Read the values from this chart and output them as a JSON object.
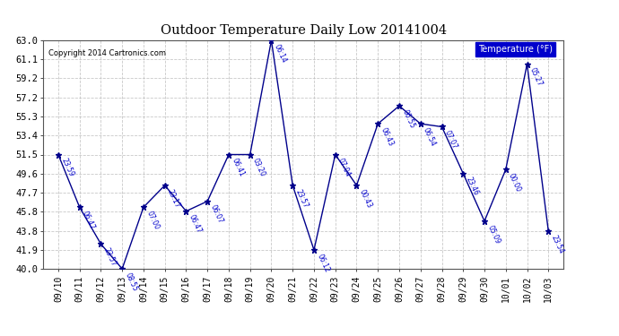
{
  "title": "Outdoor Temperature Daily Low 20141004",
  "copyright_text": "Copyright 2014 Cartronics.com",
  "legend_label": "Temperature (°F)",
  "x_labels": [
    "09/10",
    "09/11",
    "09/12",
    "09/13",
    "09/14",
    "09/15",
    "09/16",
    "09/17",
    "09/18",
    "09/19",
    "09/20",
    "09/21",
    "09/22",
    "09/23",
    "09/24",
    "09/25",
    "09/26",
    "09/27",
    "09/28",
    "09/29",
    "09/30",
    "10/01",
    "10/02",
    "10/03"
  ],
  "y_values": [
    51.5,
    46.2,
    42.5,
    40.0,
    46.2,
    48.4,
    45.8,
    46.8,
    51.5,
    51.5,
    63.0,
    48.4,
    41.9,
    51.5,
    48.4,
    54.6,
    56.4,
    54.6,
    54.3,
    49.6,
    44.8,
    50.0,
    60.6,
    43.8
  ],
  "time_labels": [
    "23:59",
    "06:47",
    "23:57",
    "08:55",
    "07:00",
    "23:17",
    "06:47",
    "06:07",
    "06:41",
    "03:20",
    "06:14",
    "23:57",
    "06:12",
    "07:04",
    "00:43",
    "06:43",
    "06:55",
    "06:54",
    "07:07",
    "23:46",
    "05:09",
    "00:00",
    "05:27",
    "23:54"
  ],
  "ylim": [
    40.0,
    63.0
  ],
  "y_ticks": [
    40.0,
    41.9,
    43.8,
    45.8,
    47.7,
    49.6,
    51.5,
    53.4,
    55.3,
    57.2,
    59.2,
    61.1,
    63.0
  ],
  "line_color": "#00008B",
  "marker_color": "#00008B",
  "bg_color": "#ffffff",
  "grid_color": "#bbbbbb",
  "label_color": "#0000CC",
  "title_color": "#000000",
  "legend_bg": "#0000CC",
  "legend_text_color": "#ffffff"
}
